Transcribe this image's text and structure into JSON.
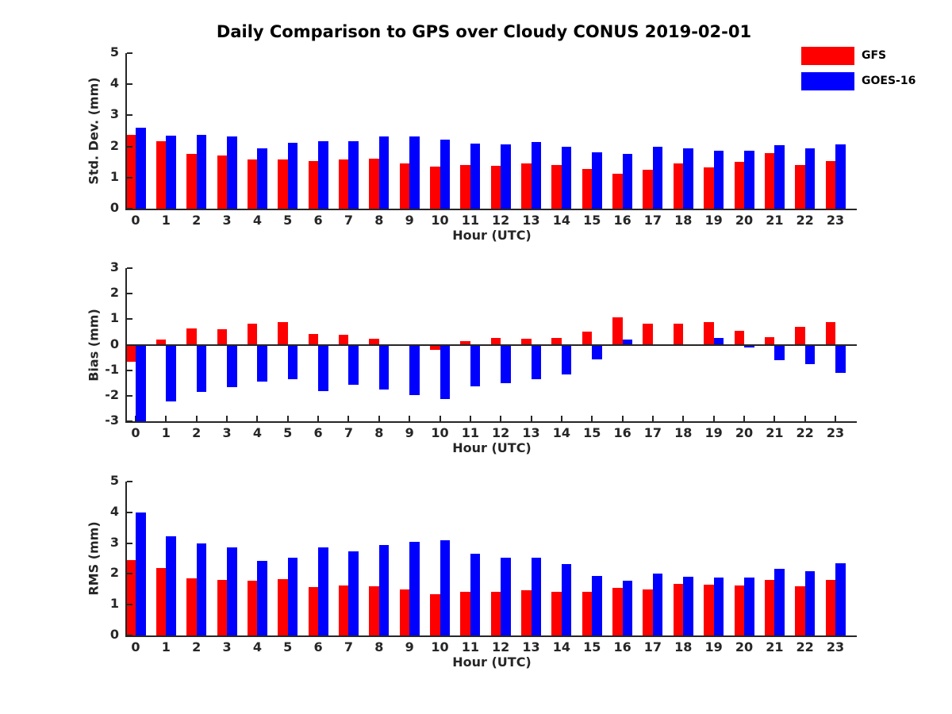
{
  "title": "Daily Comparison to GPS over Cloudy CONUS 2019-02-01",
  "legend": {
    "position": "top-right",
    "items": [
      {
        "label": "GFS",
        "color": "#ff0000"
      },
      {
        "label": "GOES-16",
        "color": "#0000ff"
      }
    ]
  },
  "axis_color": "#262626",
  "chart_data": [
    {
      "type": "bar",
      "name": "std-dev-panel",
      "ylabel": "Std. Dev. (mm)",
      "xlabel": "Hour (UTC)",
      "ylim": [
        0,
        5
      ],
      "yticks": [
        0,
        1,
        2,
        3,
        4,
        5
      ],
      "grid": false,
      "categories": [
        "0",
        "1",
        "2",
        "3",
        "4",
        "5",
        "6",
        "7",
        "8",
        "9",
        "10",
        "11",
        "12",
        "13",
        "14",
        "15",
        "16",
        "17",
        "18",
        "19",
        "20",
        "21",
        "22",
        "23"
      ],
      "series": [
        {
          "name": "GFS",
          "color": "#ff0000",
          "values": [
            2.38,
            2.18,
            1.75,
            1.7,
            1.58,
            1.58,
            1.52,
            1.58,
            1.6,
            1.46,
            1.35,
            1.4,
            1.38,
            1.45,
            1.4,
            1.28,
            1.13,
            1.25,
            1.45,
            1.32,
            1.5,
            1.78,
            1.4,
            1.54
          ]
        },
        {
          "name": "GOES-16",
          "color": "#0000ff",
          "values": [
            2.6,
            2.35,
            2.36,
            2.33,
            1.95,
            2.12,
            2.17,
            2.17,
            2.33,
            2.33,
            2.23,
            2.1,
            2.07,
            2.14,
            2.0,
            1.82,
            1.77,
            1.99,
            1.93,
            1.85,
            1.86,
            2.04,
            1.93,
            2.06
          ]
        }
      ]
    },
    {
      "type": "bar",
      "name": "bias-panel",
      "ylabel": "Bias (mm)",
      "xlabel": "Hour (UTC)",
      "ylim": [
        -3,
        3
      ],
      "yticks": [
        -3,
        -2,
        -1,
        0,
        1,
        2,
        3
      ],
      "grid": false,
      "categories": [
        "0",
        "1",
        "2",
        "3",
        "4",
        "5",
        "6",
        "7",
        "8",
        "9",
        "10",
        "11",
        "12",
        "13",
        "14",
        "15",
        "16",
        "17",
        "18",
        "19",
        "20",
        "21",
        "22",
        "23"
      ],
      "series": [
        {
          "name": "GFS",
          "color": "#ff0000",
          "values": [
            -0.68,
            0.2,
            0.63,
            0.6,
            0.82,
            0.88,
            0.42,
            0.39,
            0.23,
            0.0,
            -0.2,
            0.15,
            0.25,
            0.22,
            0.27,
            0.52,
            1.07,
            0.82,
            0.83,
            0.9,
            0.54,
            0.31,
            0.7,
            0.88
          ]
        },
        {
          "name": "GOES-16",
          "color": "#0000ff",
          "values": [
            -3.0,
            -2.23,
            -1.85,
            -1.65,
            -1.45,
            -1.35,
            -1.82,
            -1.57,
            -1.77,
            -1.98,
            -2.13,
            -1.62,
            -1.51,
            -1.36,
            -1.18,
            -0.56,
            0.19,
            -0.04,
            0.0,
            0.25,
            -0.12,
            -0.62,
            -0.76,
            -1.1
          ]
        }
      ]
    },
    {
      "type": "bar",
      "name": "rms-panel",
      "ylabel": "RMS (mm)",
      "xlabel": "Hour (UTC)",
      "ylim": [
        0,
        5
      ],
      "yticks": [
        0,
        1,
        2,
        3,
        4,
        5
      ],
      "grid": false,
      "categories": [
        "0",
        "1",
        "2",
        "3",
        "4",
        "5",
        "6",
        "7",
        "8",
        "9",
        "10",
        "11",
        "12",
        "13",
        "14",
        "15",
        "16",
        "17",
        "18",
        "19",
        "20",
        "21",
        "22",
        "23"
      ],
      "series": [
        {
          "name": "GFS",
          "color": "#ff0000",
          "values": [
            2.45,
            2.19,
            1.86,
            1.81,
            1.78,
            1.83,
            1.58,
            1.63,
            1.61,
            1.49,
            1.35,
            1.43,
            1.43,
            1.48,
            1.43,
            1.43,
            1.55,
            1.5,
            1.67,
            1.65,
            1.63,
            1.8,
            1.61,
            1.8
          ]
        },
        {
          "name": "GOES-16",
          "color": "#0000ff",
          "values": [
            4.0,
            3.21,
            2.99,
            2.85,
            2.42,
            2.52,
            2.85,
            2.73,
            2.94,
            3.04,
            3.09,
            2.65,
            2.53,
            2.52,
            2.32,
            1.93,
            1.77,
            2.01,
            1.92,
            1.89,
            1.89,
            2.16,
            2.08,
            2.35
          ]
        }
      ]
    }
  ]
}
